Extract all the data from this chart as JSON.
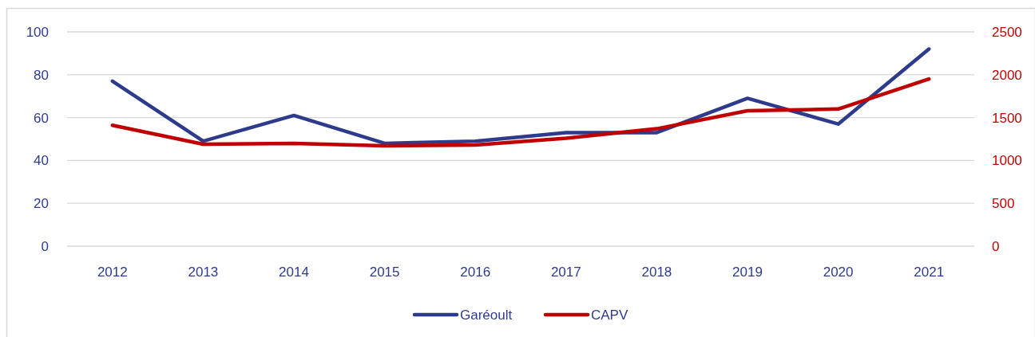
{
  "chart_data": {
    "type": "line",
    "categories": [
      "2012",
      "2013",
      "2014",
      "2015",
      "2016",
      "2017",
      "2018",
      "2019",
      "2020",
      "2021"
    ],
    "series": [
      {
        "name": "Garéoult",
        "color": "#2e3a8c",
        "values": [
          77,
          49,
          61,
          48,
          49,
          53,
          53,
          69,
          57,
          92
        ]
      },
      {
        "name": "CAPV",
        "color": "#c00000",
        "axis": "y2",
        "values": [
          1410,
          1190,
          1200,
          1170,
          1180,
          1260,
          1370,
          1580,
          1600,
          1950
        ]
      }
    ],
    "ylim": [
      0,
      100
    ],
    "yticks": [
      0,
      20,
      40,
      60,
      80,
      100
    ],
    "y2lim": [
      0,
      2500
    ],
    "y2ticks": [
      0,
      500,
      1000,
      1500,
      2000,
      2500
    ],
    "grid": "y",
    "legend": "bottom",
    "line_style": "solid"
  }
}
